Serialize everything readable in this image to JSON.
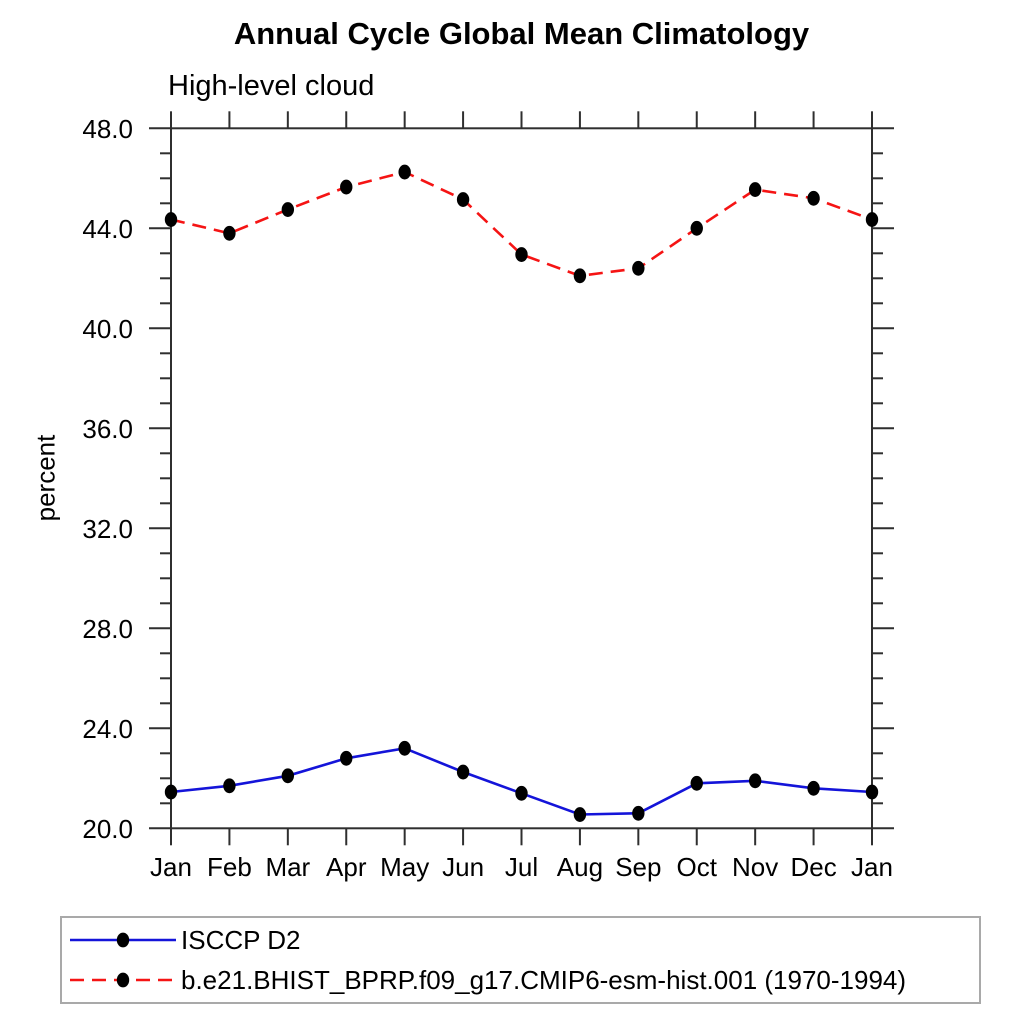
{
  "title": "Annual Cycle Global Mean Climatology",
  "subtitle": "High-level cloud",
  "ylabel": "percent",
  "axis_color": "#2f2f2f",
  "legend": {
    "entries": [
      {
        "label": "ISCCP D2",
        "color": "#1414d9",
        "line_style": "solid",
        "marker": "circle"
      },
      {
        "label": "b.e21.BHIST_BPRP.f09_g17.CMIP6-esm-hist.001 (1970-1994)",
        "color": "#f51414",
        "line_style": "dashed",
        "marker": "circle"
      }
    ]
  },
  "chart_data": {
    "type": "line",
    "title": "Annual Cycle Global Mean Climatology",
    "subtitle": "High-level cloud",
    "xlabel": "",
    "ylabel": "percent",
    "categories": [
      "Jan",
      "Feb",
      "Mar",
      "Apr",
      "May",
      "Jun",
      "Jul",
      "Aug",
      "Sep",
      "Oct",
      "Nov",
      "Dec",
      "Jan"
    ],
    "series": [
      {
        "name": "ISCCP D2",
        "color": "#1414d9",
        "line_style": "solid",
        "marker": "circle",
        "marker_color": "#000000",
        "values": [
          21.45,
          21.7,
          22.1,
          22.8,
          23.2,
          22.25,
          21.4,
          20.55,
          20.6,
          21.8,
          21.9,
          21.6,
          21.45
        ]
      },
      {
        "name": "b.e21.BHIST_BPRP.f09_g17.CMIP6-esm-hist.001 (1970-1994)",
        "color": "#f51414",
        "line_style": "dashed",
        "marker": "circle",
        "marker_color": "#000000",
        "values": [
          44.35,
          43.8,
          44.75,
          45.65,
          46.25,
          45.15,
          42.95,
          42.1,
          42.4,
          44.0,
          45.55,
          45.2,
          44.35
        ]
      }
    ],
    "ylim": [
      20.0,
      48.0
    ],
    "ytick_major_step": 4.0,
    "ytick_minor_step": 1.0,
    "ytick_label_format": "one_decimal",
    "grid": false,
    "legend_position": "bottom-left"
  }
}
